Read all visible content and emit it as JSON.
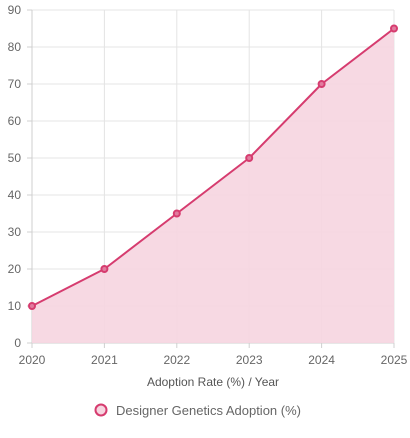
{
  "chart_data": {
    "type": "area",
    "categories": [
      "2020",
      "2021",
      "2022",
      "2023",
      "2024",
      "2025"
    ],
    "series": [
      {
        "name": "Designer Genetics Adoption (%)",
        "values": [
          10,
          20,
          35,
          50,
          70,
          85
        ],
        "line_color": "#d63c6f",
        "fill_color": "#f6d5e0",
        "point_fill": "#e17c9f"
      }
    ],
    "xlabel": "Adoption Rate (%) / Year",
    "ylabel": "",
    "ylim": [
      0,
      90
    ],
    "yticks": [
      0,
      10,
      20,
      30,
      40,
      50,
      60,
      70,
      80,
      90
    ],
    "grid": true,
    "legend_position": "bottom"
  }
}
